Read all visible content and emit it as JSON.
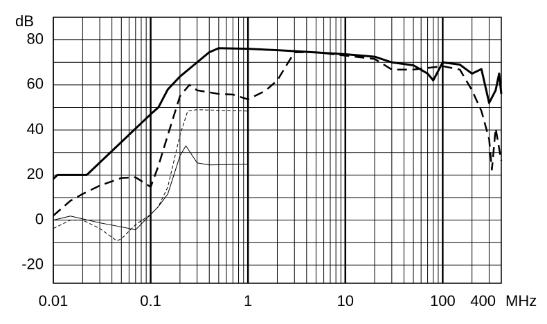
{
  "chart_data": {
    "type": "line",
    "x_label": "MHz",
    "y_label": "dB",
    "xscale": "log",
    "xlim": [
      0.01,
      400
    ],
    "xticks": [
      0.01,
      0.1,
      1,
      10,
      100,
      400
    ],
    "ylim": [
      -28,
      90
    ],
    "yticks": [
      -20,
      0,
      20,
      40,
      60,
      80
    ],
    "grid": true,
    "series": [
      {
        "color": "#000000",
        "linestyle": "solid",
        "linewidth": 3,
        "x": [
          0.01,
          0.011,
          0.022,
          0.1,
          0.12,
          0.15,
          0.2,
          0.3,
          0.4,
          0.5,
          1,
          2,
          3,
          10,
          20,
          30,
          50,
          70,
          80,
          100,
          150,
          200,
          250,
          300,
          350,
          380,
          400
        ],
        "values": [
          18.3,
          20,
          20,
          47,
          50,
          58,
          63.7,
          70,
          74.5,
          76.3,
          76,
          75.4,
          75,
          73.6,
          72.5,
          70,
          68.7,
          65,
          62,
          70,
          69,
          65,
          67,
          52,
          57.6,
          65,
          56
        ]
      },
      {
        "color": "#000000",
        "linestyle": "dashed",
        "linewidth": 2.5,
        "x": [
          0.01,
          0.015,
          0.02,
          0.03,
          0.05,
          0.07,
          0.09,
          0.1,
          0.12,
          0.15,
          0.2,
          0.25,
          0.3,
          0.5,
          0.7,
          1,
          1.5,
          2,
          3,
          5,
          10,
          20,
          30,
          50,
          100,
          150,
          200,
          250,
          300,
          320,
          350,
          400
        ],
        "values": [
          2,
          8.6,
          11.6,
          15.3,
          18.7,
          19,
          16,
          14.7,
          24,
          37.7,
          55,
          60,
          57.6,
          56,
          55.7,
          53.6,
          57.3,
          62,
          74.5,
          74.5,
          73,
          71.5,
          66.8,
          66.8,
          68.3,
          66.8,
          57.6,
          48.4,
          36,
          22.4,
          40.7,
          26.3
        ]
      },
      {
        "color": "#000000",
        "linestyle": "dashed",
        "linewidth": 1,
        "x": [
          0.01,
          0.015,
          0.02,
          0.03,
          0.045,
          0.05,
          0.07,
          0.1,
          0.12,
          0.15,
          0.2,
          0.24,
          0.3,
          1
        ],
        "values": [
          -3.7,
          0,
          0,
          -3.7,
          -9.2,
          -8.3,
          -2,
          2.5,
          6,
          14.7,
          37.7,
          48.4,
          49,
          48.4
        ]
      },
      {
        "color": "#000000",
        "linestyle": "solid",
        "linewidth": 1,
        "x": [
          0.01,
          0.015,
          0.03,
          0.05,
          0.07,
          0.1,
          0.12,
          0.15,
          0.2,
          0.23,
          0.3,
          0.4,
          1
        ],
        "values": [
          0,
          1.8,
          -1.2,
          -3,
          -4.3,
          2.5,
          6,
          11.6,
          28.5,
          33,
          25.4,
          24.5,
          24.8
        ]
      }
    ]
  }
}
